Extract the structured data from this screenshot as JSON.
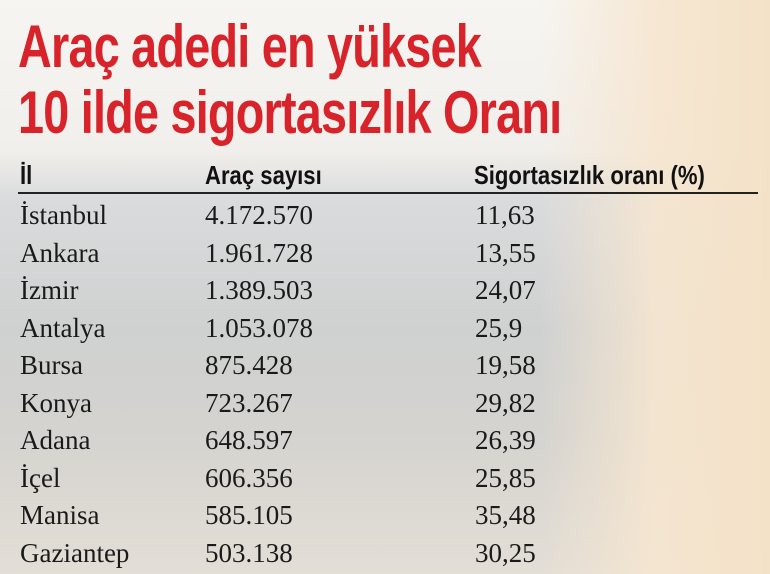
{
  "title": [
    "Araç adedi en yüksek",
    "10 ilde sigortasızlık Oranı"
  ],
  "table": {
    "header": [
      "İl",
      "Araç sayısı",
      "Sigortasızlık oranı (%)"
    ],
    "rows": [
      [
        "İstanbul",
        "4.172.570",
        "11,63"
      ],
      [
        "Ankara",
        "1.961.728",
        "13,55"
      ],
      [
        "İzmir",
        "1.389.503",
        "24,07"
      ],
      [
        "Antalya",
        "1.053.078",
        "25,9"
      ],
      [
        "Bursa",
        "875.428",
        "19,58"
      ],
      [
        "Konya",
        "723.267",
        "29,82"
      ],
      [
        "Adana",
        "648.597",
        "26,39"
      ],
      [
        "İçel",
        "606.356",
        "25,85"
      ],
      [
        "Manisa",
        "585.105",
        "35,48"
      ],
      [
        "Gaziantep",
        "503.138",
        "30,25"
      ]
    ]
  }
}
